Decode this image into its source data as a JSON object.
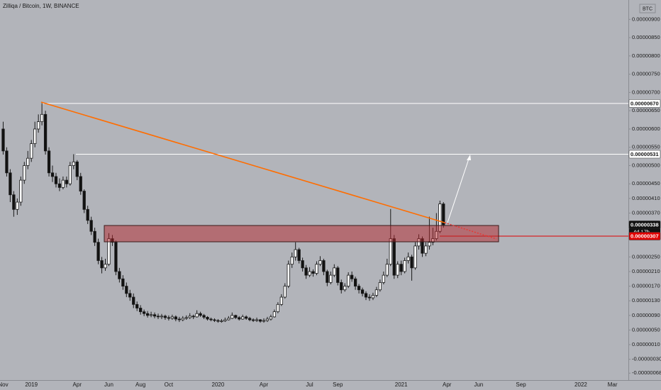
{
  "chart_data": {
    "type": "candlestick",
    "title": "Zilliqa / Bitcoin, 1W, BINANCE",
    "currency": "BTC",
    "countdown": "4d 17h",
    "up_color": "#ffffff",
    "down_color": "#111111",
    "wick_color": "#1a1a1a",
    "categories": [
      "Nov",
      null,
      null,
      null,
      null,
      null,
      null,
      null,
      "2019",
      null,
      null,
      null,
      null,
      null,
      null,
      null,
      null,
      null,
      null,
      null,
      null,
      "Apr",
      null,
      null,
      null,
      null,
      null,
      null,
      null,
      null,
      "Jun",
      null,
      null,
      null,
      null,
      null,
      null,
      null,
      null,
      "Aug",
      null,
      null,
      null,
      null,
      null,
      null,
      null,
      "Oct",
      null,
      null,
      null,
      null,
      null,
      null,
      null,
      null,
      null,
      null,
      null,
      null,
      null,
      "2020",
      null,
      null,
      null,
      null,
      null,
      null,
      null,
      null,
      null,
      null,
      null,
      null,
      "Apr",
      null,
      null,
      null,
      null,
      null,
      null,
      null,
      null,
      null,
      null,
      null,
      null,
      "Jul",
      null,
      null,
      null,
      null,
      null,
      null,
      null,
      "Sep",
      null,
      null,
      null,
      null,
      null,
      null,
      null,
      null,
      null,
      null,
      null,
      null,
      null,
      null,
      null,
      null,
      null,
      "2021",
      null,
      null,
      null,
      null,
      null,
      null,
      null,
      null,
      null,
      null,
      null,
      null,
      "Apr",
      null,
      null,
      null,
      null,
      null,
      null,
      null,
      null,
      "Jun",
      null,
      null,
      null,
      null,
      null,
      null,
      null,
      null,
      null,
      null,
      null,
      "Sep",
      null,
      null,
      null,
      null,
      null,
      null,
      null,
      null,
      null,
      null,
      null,
      null,
      null,
      null,
      null,
      null,
      "2022",
      null,
      null,
      null,
      null,
      null,
      null,
      null,
      null,
      "Mar",
      null,
      null,
      null,
      null
    ],
    "open": [
      6e-06,
      5.4e-06,
      4.8e-06,
      4.2e-06,
      3.8e-06,
      4e-06,
      4.6e-06,
      5e-06,
      5.2e-06,
      5.6e-06,
      6e-06,
      6.2e-06,
      6.4e-06,
      5.4e-06,
      4.8e-06,
      4.7e-06,
      4.5e-06,
      4.4e-06,
      4.6e-06,
      4.5e-06,
      5e-06,
      5.1e-06,
      4.7e-06,
      4.3e-06,
      3.8e-06,
      3.5e-06,
      3.2e-06,
      2.9e-06,
      2.4e-06,
      2.2e-06,
      2.3e-06,
      3e-06,
      2.9e-06,
      2.1e-06,
      1.9e-06,
      1.7e-06,
      1.5e-06,
      1.4e-06,
      1.2e-06,
      1.1e-06,
      1e-06,
      9.5e-07,
      9e-07,
      9.2e-07,
      8.8e-07,
      8.6e-07,
      8.8e-07,
      8.4e-07,
      8.2e-07,
      8.6e-07,
      8e-07,
      7.8e-07,
      8.2e-07,
      8.4e-07,
      8.8e-07,
      8.6e-07,
      9.5e-07,
      9e-07,
      8.5e-07,
      8e-07,
      7.8e-07,
      7.6e-07,
      7.4e-07,
      7.5e-07,
      7.8e-07,
      8.2e-07,
      9e-07,
      8.4e-07,
      8e-07,
      8.6e-07,
      8.2e-07,
      7.8e-07,
      7.6e-07,
      7.8e-07,
      7.4e-07,
      7.6e-07,
      8e-07,
      8.6e-07,
      1e-06,
      1.2e-06,
      1.4e-06,
      1.7e-06,
      2.3e-06,
      2.5e-06,
      2.7e-06,
      2.4e-06,
      2.2e-06,
      2e-06,
      2.1e-06,
      2.05e-06,
      2.3e-06,
      2.4e-06,
      2.1e-06,
      1.8e-06,
      2e-06,
      2.2e-06,
      1.8e-06,
      1.6e-06,
      1.7e-06,
      2e-06,
      1.9e-06,
      1.7e-06,
      1.6e-06,
      1.5e-06,
      1.4e-06,
      1.38e-06,
      1.45e-06,
      1.6e-06,
      1.8e-06,
      2e-06,
      2.3e-06,
      3e-06,
      2e-06,
      2.3e-06,
      2.1e-06,
      2.4e-06,
      2.5e-06,
      2.2e-06,
      2.8e-06,
      3e-06,
      2.6e-06,
      2.8e-06,
      2.9e-06,
      3e-06,
      3.2e-06,
      3.95e-06,
      null,
      null,
      null,
      null,
      null,
      null,
      null,
      null,
      null,
      null,
      null,
      null,
      null,
      null,
      null,
      null,
      null,
      null,
      null,
      null,
      null,
      null,
      null,
      null,
      null,
      null,
      null,
      null,
      null,
      null,
      null,
      null,
      null,
      null,
      null,
      null,
      null,
      null,
      null,
      null,
      null,
      null,
      null,
      null,
      null,
      null,
      null,
      null,
      null,
      null,
      null,
      null
    ],
    "high": [
      6.2e-06,
      5.5e-06,
      4.9e-06,
      4.3e-06,
      4.1e-06,
      4.7e-06,
      5.1e-06,
      5.4e-06,
      5.7e-06,
      6.2e-06,
      6.4e-06,
      6.74e-06,
      6.5e-06,
      5.5e-06,
      5e-06,
      4.8e-06,
      4.65e-06,
      4.7e-06,
      4.7e-06,
      5.1e-06,
      5.31e-06,
      5.15e-06,
      4.8e-06,
      4.35e-06,
      3.9e-06,
      3.6e-06,
      3.3e-06,
      3e-06,
      2.5e-06,
      2.45e-06,
      3.15e-06,
      3.1e-06,
      2.95e-06,
      2.2e-06,
      2e-06,
      1.8e-06,
      1.6e-06,
      1.5e-06,
      1.28e-06,
      1.18e-06,
      1.06e-06,
      1.02e-06,
      1e-06,
      9.8e-07,
      9.5e-07,
      9.4e-07,
      9.2e-07,
      9e-07,
      9.2e-07,
      9e-07,
      8.6e-07,
      8.8e-07,
      9e-07,
      9.6e-07,
      9.2e-07,
      1.04e-06,
      1e-06,
      9.4e-07,
      8.8e-07,
      8.4e-07,
      8.2e-07,
      8e-07,
      8e-07,
      8.4e-07,
      8.8e-07,
      9.8e-07,
      9.2e-07,
      8.8e-07,
      9.2e-07,
      9e-07,
      8.6e-07,
      8.2e-07,
      8.4e-07,
      8e-07,
      8.2e-07,
      8.6e-07,
      9.2e-07,
      1.06e-06,
      1.26e-06,
      1.48e-06,
      1.78e-06,
      2.4e-06,
      2.62e-06,
      2.9e-06,
      2.75e-06,
      2.48e-06,
      2.28e-06,
      2.22e-06,
      2.16e-06,
      2.38e-06,
      2.52e-06,
      2.45e-06,
      2.15e-06,
      2.1e-06,
      2.3e-06,
      2.25e-06,
      1.88e-06,
      1.78e-06,
      2.08e-06,
      2.1e-06,
      1.96e-06,
      1.76e-06,
      1.66e-06,
      1.56e-06,
      1.48e-06,
      1.52e-06,
      1.68e-06,
      1.88e-06,
      2.1e-06,
      2.45e-06,
      3.81e-06,
      3.1e-06,
      2.38e-06,
      2.4e-06,
      2.48e-06,
      2.62e-06,
      2.56e-06,
      2.9e-06,
      3.12e-06,
      3.06e-06,
      2.9e-06,
      3.6e-06,
      3.3e-06,
      3.7e-06,
      4.04e-06,
      4e-06,
      null,
      null,
      null,
      null,
      null,
      null,
      null,
      null,
      null,
      null,
      null,
      null,
      null,
      null,
      null,
      null,
      null,
      null,
      null,
      null,
      null,
      null,
      null,
      null,
      null,
      null,
      null,
      null,
      null,
      null,
      null,
      null,
      null,
      null,
      null,
      null,
      null,
      null,
      null,
      null,
      null,
      null,
      null,
      null,
      null,
      null,
      null,
      null,
      null,
      null,
      null,
      null
    ],
    "low": [
      5.3e-06,
      4.7e-06,
      4e-06,
      3.6e-06,
      3.65e-06,
      3.9e-06,
      4.5e-06,
      4.9e-06,
      5.1e-06,
      5.5e-06,
      5.9e-06,
      6.1e-06,
      5.3e-06,
      4.7e-06,
      4.55e-06,
      4.4e-06,
      4.3e-06,
      4.35e-06,
      4.4e-06,
      4.45e-06,
      4.9e-06,
      4.6e-06,
      4.2e-06,
      3.7e-06,
      3.4e-06,
      3.1e-06,
      2.8e-06,
      2.3e-06,
      2.05e-06,
      2.12e-06,
      2.25e-06,
      2.8e-06,
      2e-06,
      1.8e-06,
      1.6e-06,
      1.4e-06,
      1.3e-06,
      1.1e-06,
      1.02e-06,
      9.2e-07,
      8.8e-07,
      8.4e-07,
      8.5e-07,
      8.2e-07,
      8e-07,
      8e-07,
      7.8e-07,
      7.6e-07,
      7.8e-07,
      7.4e-07,
      7.2e-07,
      7.4e-07,
      7.8e-07,
      8e-07,
      8e-07,
      8.4e-07,
      8.6e-07,
      8e-07,
      7.6e-07,
      7.4e-07,
      7.2e-07,
      7e-07,
      7e-07,
      7.2e-07,
      7.6e-07,
      8e-07,
      8e-07,
      7.6e-07,
      7.8e-07,
      7.8e-07,
      7.4e-07,
      7.2e-07,
      7.2e-07,
      7e-07,
      7e-07,
      7.2e-07,
      7.6e-07,
      8.4e-07,
      9.6e-07,
      1.16e-06,
      1.36e-06,
      1.65e-06,
      2.2e-06,
      2.4e-06,
      2.32e-06,
      2.1e-06,
      1.9e-06,
      1.95e-06,
      1.96e-06,
      2e-06,
      2.25e-06,
      2e-06,
      1.7e-06,
      1.75e-06,
      1.95e-06,
      1.72e-06,
      1.5e-06,
      1.55e-06,
      1.65e-06,
      1.82e-06,
      1.6e-06,
      1.5e-06,
      1.42e-06,
      1.32e-06,
      1.3e-06,
      1.32e-06,
      1.4e-06,
      1.55e-06,
      1.75e-06,
      1.95e-06,
      2.25e-06,
      1.9e-06,
      1.92e-06,
      2e-06,
      2.05e-06,
      2.32e-06,
      1.85e-06,
      2.15e-06,
      2.7e-06,
      2.5e-06,
      2.52e-06,
      2.7e-06,
      2.82e-06,
      2.95e-06,
      3.15e-06,
      3.3e-06,
      null,
      null,
      null,
      null,
      null,
      null,
      null,
      null,
      null,
      null,
      null,
      null,
      null,
      null,
      null,
      null,
      null,
      null,
      null,
      null,
      null,
      null,
      null,
      null,
      null,
      null,
      null,
      null,
      null,
      null,
      null,
      null,
      null,
      null,
      null,
      null,
      null,
      null,
      null,
      null,
      null,
      null,
      null,
      null,
      null,
      null,
      null,
      null,
      null,
      null,
      null,
      null
    ],
    "close": [
      5.4e-06,
      4.8e-06,
      4.2e-06,
      3.8e-06,
      4e-06,
      4.6e-06,
      5e-06,
      5.2e-06,
      5.6e-06,
      6e-06,
      6.2e-06,
      6.4e-06,
      5.4e-06,
      4.8e-06,
      4.7e-06,
      4.5e-06,
      4.4e-06,
      4.6e-06,
      4.5e-06,
      5e-06,
      5.1e-06,
      4.7e-06,
      4.3e-06,
      3.8e-06,
      3.5e-06,
      3.2e-06,
      2.9e-06,
      2.4e-06,
      2.2e-06,
      2.3e-06,
      3e-06,
      2.9e-06,
      2.1e-06,
      1.9e-06,
      1.7e-06,
      1.5e-06,
      1.4e-06,
      1.2e-06,
      1.1e-06,
      1e-06,
      9.5e-07,
      9e-07,
      9.2e-07,
      8.8e-07,
      8.6e-07,
      8.8e-07,
      8.4e-07,
      8.2e-07,
      8.6e-07,
      8e-07,
      7.8e-07,
      8.2e-07,
      8.4e-07,
      8.8e-07,
      8.6e-07,
      9.5e-07,
      9e-07,
      8.5e-07,
      8e-07,
      7.8e-07,
      7.6e-07,
      7.4e-07,
      7.5e-07,
      7.8e-07,
      8.2e-07,
      9e-07,
      8.4e-07,
      8e-07,
      8.6e-07,
      8.2e-07,
      7.8e-07,
      7.6e-07,
      7.8e-07,
      7.4e-07,
      7.6e-07,
      8e-07,
      8.6e-07,
      1e-06,
      1.2e-06,
      1.4e-06,
      1.7e-06,
      2.3e-06,
      2.5e-06,
      2.7e-06,
      2.4e-06,
      2.2e-06,
      2e-06,
      2.1e-06,
      2.05e-06,
      2.3e-06,
      2.4e-06,
      2.1e-06,
      1.8e-06,
      2e-06,
      2.2e-06,
      1.8e-06,
      1.6e-06,
      1.7e-06,
      2e-06,
      1.9e-06,
      1.7e-06,
      1.6e-06,
      1.5e-06,
      1.4e-06,
      1.38e-06,
      1.45e-06,
      1.6e-06,
      1.8e-06,
      2e-06,
      2.3e-06,
      3e-06,
      2e-06,
      2.3e-06,
      2.1e-06,
      2.4e-06,
      2.5e-06,
      2.2e-06,
      2.8e-06,
      3e-06,
      2.6e-06,
      2.8e-06,
      2.9e-06,
      3e-06,
      3.2e-06,
      3.95e-06,
      3.38e-06,
      null,
      null,
      null,
      null,
      null,
      null,
      null,
      null,
      null,
      null,
      null,
      null,
      null,
      null,
      null,
      null,
      null,
      null,
      null,
      null,
      null,
      null,
      null,
      null,
      null,
      null,
      null,
      null,
      null,
      null,
      null,
      null,
      null,
      null,
      null,
      null,
      null,
      null,
      null,
      null,
      null,
      null,
      null,
      null,
      null,
      null,
      null,
      null,
      null,
      null,
      null,
      null
    ],
    "ylim": [
      -8.5e-07,
      9.53e-06
    ],
    "yticks": [
      {
        "value": 9e-06,
        "label": "0.00000900"
      },
      {
        "value": 8.5e-06,
        "label": "0.00000850"
      },
      {
        "value": 8e-06,
        "label": "0.00000800"
      },
      {
        "value": 7.5e-06,
        "label": "0.00000750"
      },
      {
        "value": 7e-06,
        "label": "0.00000700"
      },
      {
        "value": 6.5e-06,
        "label": "0.00000650"
      },
      {
        "value": 6e-06,
        "label": "0.00000600"
      },
      {
        "value": 5.5e-06,
        "label": "0.00000550"
      },
      {
        "value": 5e-06,
        "label": "0.00000500"
      },
      {
        "value": 4.5e-06,
        "label": "0.00000450"
      },
      {
        "value": 4.1e-06,
        "label": "0.00000410"
      },
      {
        "value": 3.7e-06,
        "label": "0.00000370"
      },
      {
        "value": 2.5e-06,
        "label": "0.00000250"
      },
      {
        "value": 2.1e-06,
        "label": "0.00000210"
      },
      {
        "value": 1.7e-06,
        "label": "0.00000170"
      },
      {
        "value": 1.3e-06,
        "label": "0.00000130"
      },
      {
        "value": 9e-07,
        "label": "0.00000090"
      },
      {
        "value": 5e-07,
        "label": "0.00000050"
      },
      {
        "value": 1e-07,
        "label": "0.00000010"
      },
      {
        "value": -3e-07,
        "label": "-0.00000030"
      },
      {
        "value": -6.8e-07,
        "label": "-0.00000068"
      }
    ],
    "price_labels": [
      {
        "value": 6.7e-06,
        "label": "0.00000670"
      },
      {
        "value": 5.31e-06,
        "label": "0.00000531"
      },
      {
        "value": 3.38e-06,
        "label": "0.00000338"
      },
      {
        "value": 3.07e-06,
        "label": "0.00000307"
      }
    ]
  }
}
